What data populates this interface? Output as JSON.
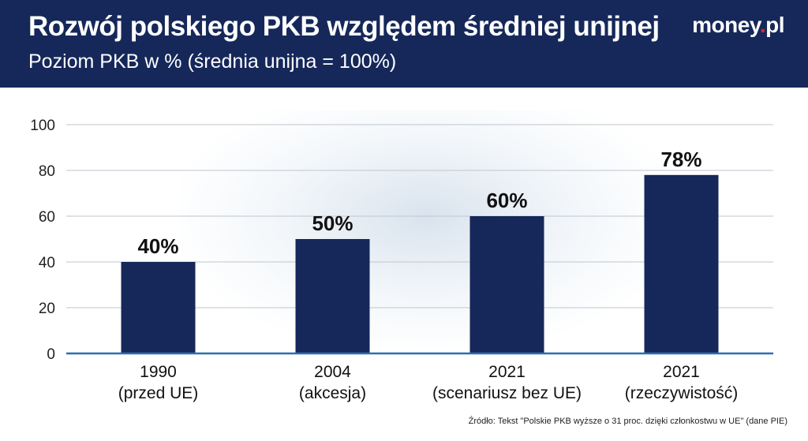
{
  "header": {
    "title": "Rozwój polskiego PKB względem średniej unijnej",
    "subtitle": "Poziom PKB w % (średnia unijna = 100%)",
    "logo_main": "money",
    "logo_dot": ".",
    "logo_suffix": "pl"
  },
  "colors": {
    "header_bg": "#16285a",
    "bar": "#16285a",
    "baseline": "#2a6fb0",
    "grid": "#bfc6cf"
  },
  "chart_data": {
    "type": "bar",
    "categories": [
      "1990\n(przed UE)",
      "2004\n(akcesja)",
      "2021\n(scenariusz bez UE)",
      "2021\n(rzeczywistość)"
    ],
    "values": [
      40,
      50,
      60,
      78
    ],
    "data_labels": [
      "40%",
      "50%",
      "60%",
      "78%"
    ],
    "title": "Rozwój polskiego PKB względem średniej unijnej",
    "subtitle": "Poziom PKB w % (średnia unijna = 100%)",
    "xlabel": "",
    "ylabel": "",
    "ylim": [
      0,
      100
    ],
    "yticks": [
      0,
      20,
      40,
      60,
      80,
      100
    ],
    "grid": true,
    "legend": "none"
  },
  "source": "Źródło: Tekst \"Polskie PKB wyższe o 31 proc. dzięki członkostwu w UE\" (dane PIE)"
}
